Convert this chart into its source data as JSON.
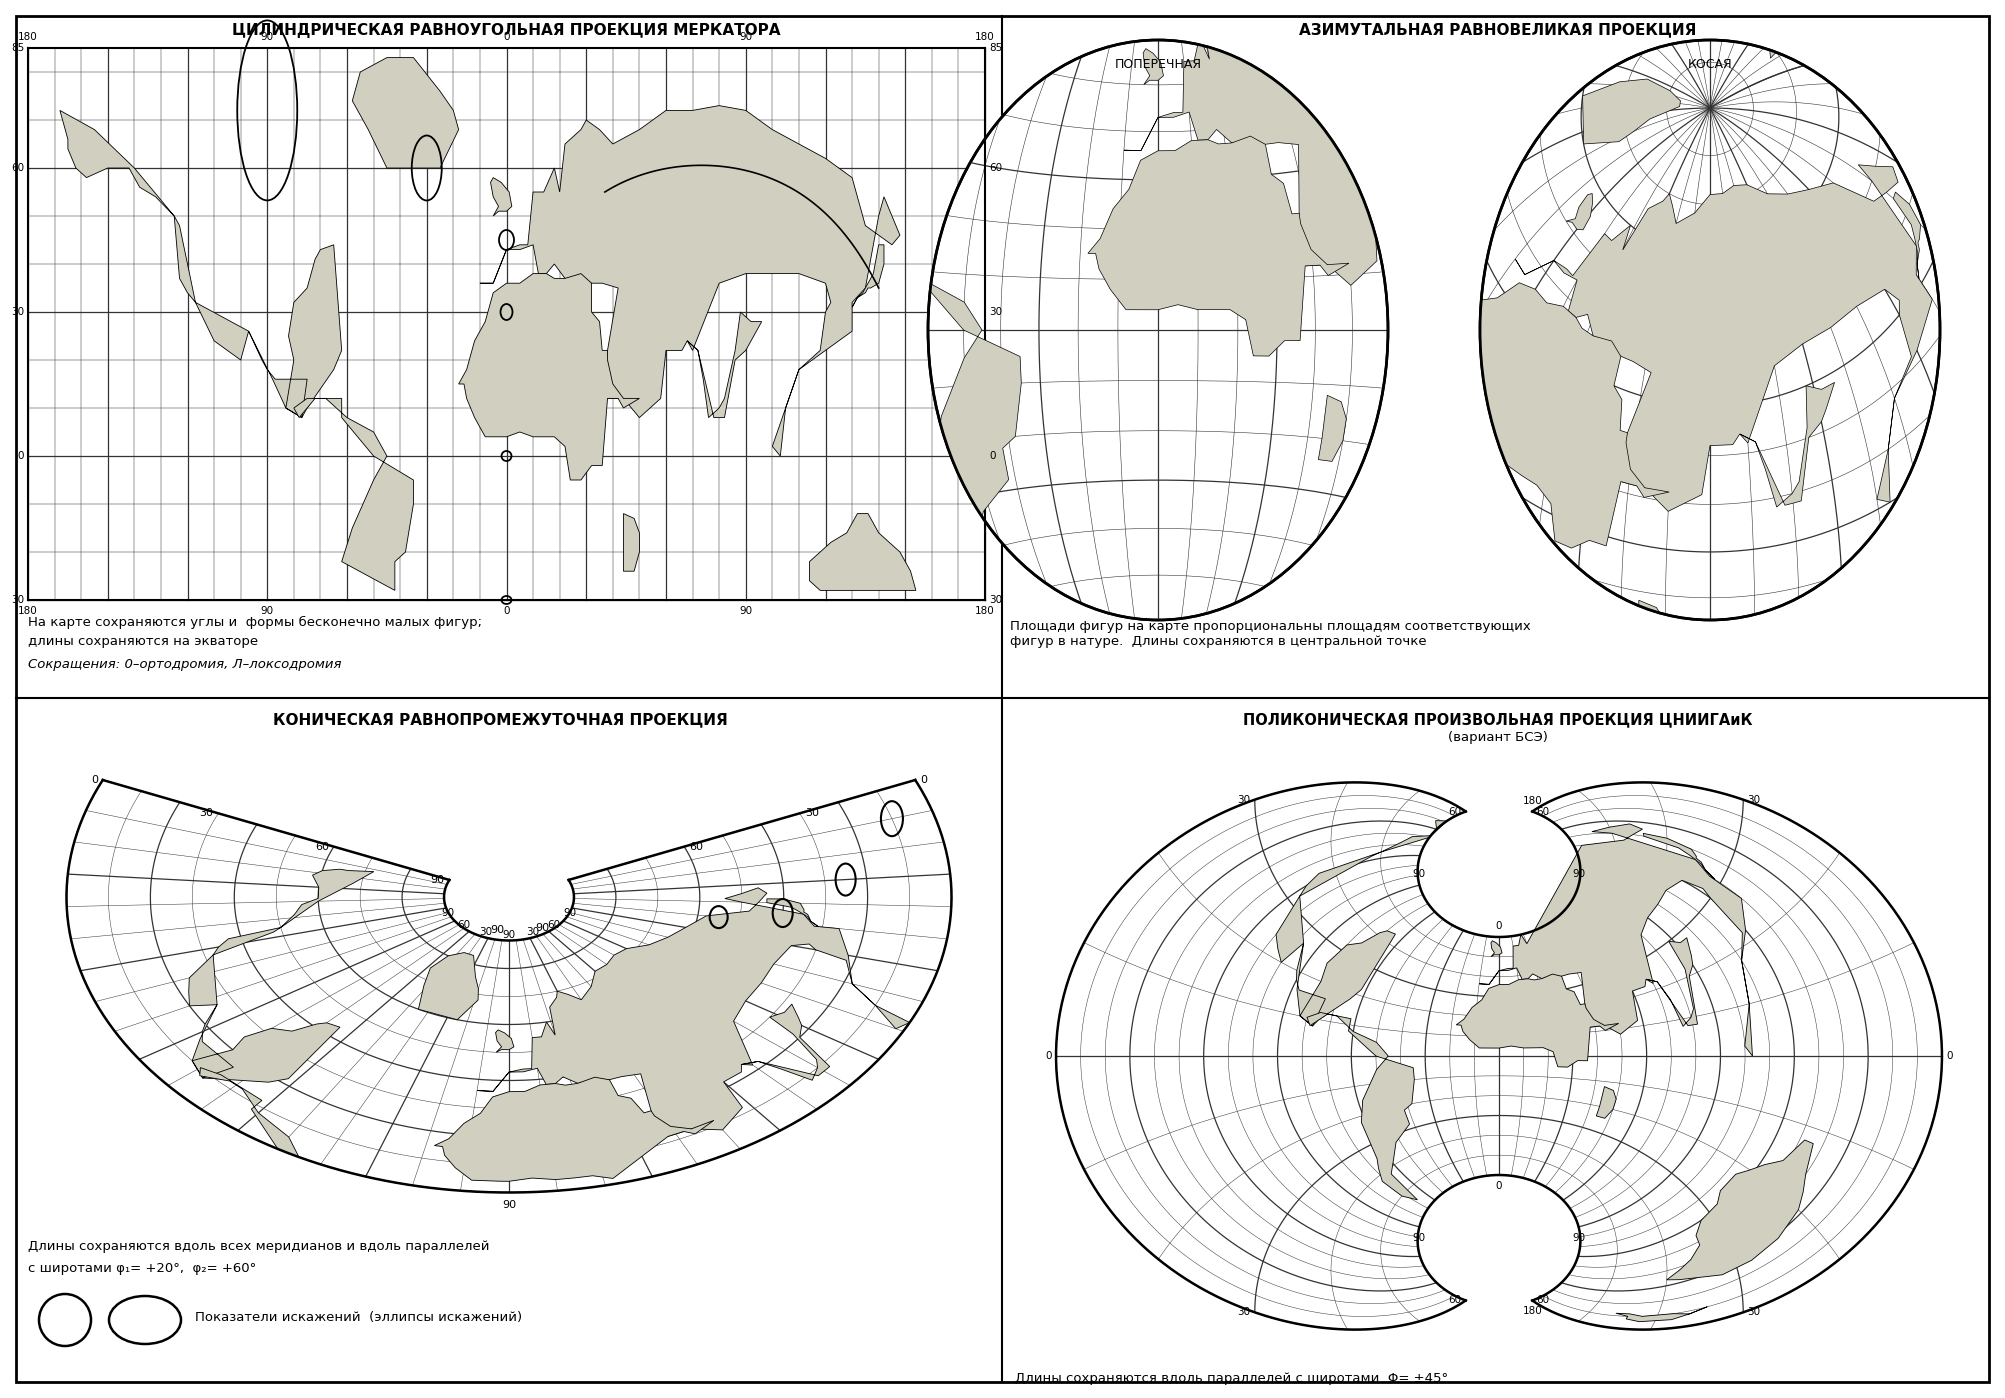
{
  "title_tl": "ЦИЛИНДРИЧЕСКАЯ РАВНОУГОЛЬНАЯ ПРОЕКЦИЯ МЕРКАТОРА",
  "title_tr": "АЗИМУТАЛЬНАЯ РАВНОВЕЛИКАЯ ПРОЕКЦИЯ",
  "title_bl": "КОНИЧЕСКАЯ РАВНОПРОМЕЖУТОЧНАЯ ПРОЕКЦИЯ",
  "title_br1": "ПОЛИКОНИЧЕСКАЯ ПРОИЗВОЛЬНАЯ ПРОЕКЦИЯ ЦНИИГАиК",
  "title_br2": "(вариант БСЭ)",
  "sub_tr_left": "ПОПЕРЕЧНАЯ",
  "sub_tr_right": "КОСАЯ",
  "cap_tl1": "На карте сохраняются углы и  формы бесконечно малых фигур;",
  "cap_tl2": "длины сохраняются на экваторе",
  "cap_tl3": "Сокращения: 0–ортодромия, Л–локсодромия",
  "cap_tr": "Площади фигур на карте пропорциональны площадям соответствующих\nфигур в натуре.  Длины сохраняются в центральной точке",
  "cap_bl1": "Длины сохраняются вдоль всех меридианов и вдоль параллелей",
  "cap_bl2": "с широтами φ₁= +20°,  φ₂= +60°",
  "cap_bl3": "Показатели искажений  (эллипсы искажений)",
  "cap_br": "Длины сохраняются вдоль параллелей с широтами  Φ= ±45°",
  "land_color": "#d0cfc0",
  "grid_color": "#333333",
  "line_color": "#000000"
}
